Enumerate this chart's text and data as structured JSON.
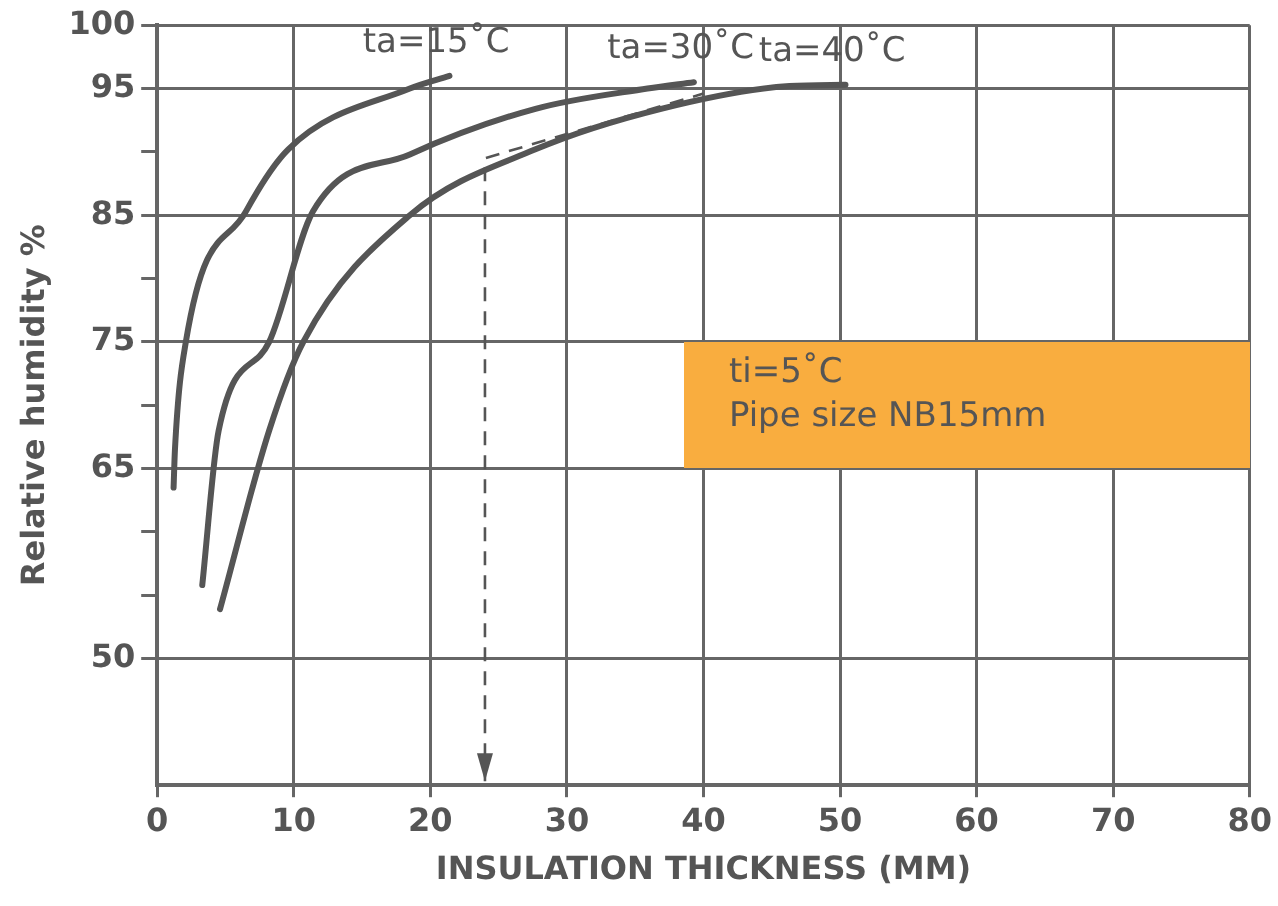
{
  "chart_data": {
    "type": "line",
    "xlabel": "INSULATION THICKNESS (MM)",
    "ylabel": "Relative humidity %",
    "xlim": [
      0,
      80
    ],
    "xticks": [
      0,
      10,
      20,
      30,
      40,
      50,
      60,
      70,
      80
    ],
    "ylim": [
      40,
      100
    ],
    "yticks": [
      100,
      95,
      {
        "value": 90,
        "label": null
      },
      85,
      {
        "value": 80,
        "label": null
      },
      75,
      {
        "value": 70,
        "label": null
      },
      65,
      {
        "value": 60,
        "label": null
      },
      {
        "value": 55,
        "label": null
      },
      50
    ],
    "grid": true,
    "legend": false,
    "marker": "none",
    "line_style": "solid",
    "series": [
      {
        "name": "ta=15˚C",
        "color": "#555555",
        "x": [
          1.2,
          1.3,
          2.1,
          6.5,
          9.6,
          18.5,
          21.4
        ],
        "values": [
          63.5,
          66.5,
          75,
          85.3,
          90.2,
          95,
          96
        ]
      },
      {
        "name": "ta=30˚C",
        "color": "#555555",
        "x": [
          3.3,
          4.5,
          8.2,
          11.4,
          18.5,
          27.7,
          35.9,
          39.3
        ],
        "values": [
          55.8,
          68,
          75,
          85.3,
          89.8,
          93.4,
          95,
          95.5
        ]
      },
      {
        "name": "ta=40˚C",
        "color": "#555555",
        "x": [
          4.6,
          8.2,
          10.7,
          18.5,
          27.7,
          36.9,
          46.3,
          50.4
        ],
        "values": [
          53.9,
          68,
          75,
          85,
          90.2,
          93.4,
          95.2,
          95.3
        ]
      }
    ],
    "annotations": [
      "ti=5˚C",
      "Pipe size NB15mm"
    ]
  }
}
